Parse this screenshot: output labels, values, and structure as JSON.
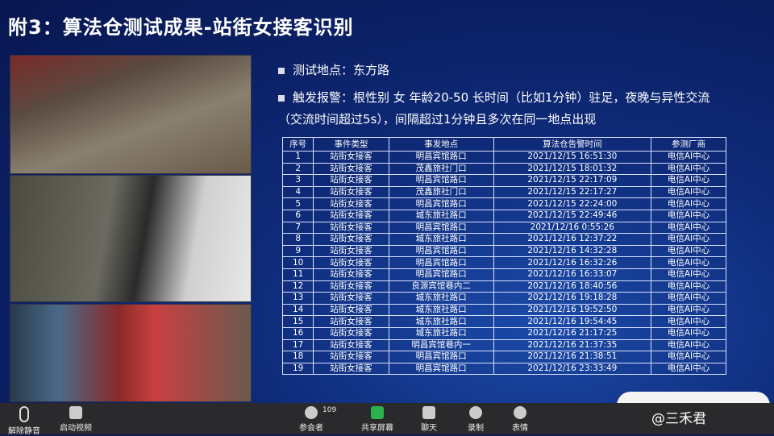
{
  "slide": {
    "title": "附3：算法仓测试成果-站街女接客识别",
    "bullets": [
      "测试地点：东方路",
      "触发报警：根性别 女  年龄20-50 长时间（比如1分钟）驻足，夜晚与异性交流（交流时间超过5s），间隔超过1分钟且多次在同一地点出现"
    ],
    "table": {
      "header": [
        "序号",
        "事件类型",
        "事发地点",
        "算法仓告警时间",
        "参测厂商"
      ],
      "rows": [
        [
          1,
          "站街女接客",
          "明昌宾馆路口",
          "2021/12/15 16:51:30",
          "电信AI中心"
        ],
        [
          2,
          "站街女接客",
          "茂鑫旅社门口",
          "2021/12/15 18:01:32",
          "电信AI中心"
        ],
        [
          3,
          "站街女接客",
          "明昌宾馆路口",
          "2021/12/15 22:17:09",
          "电信AI中心"
        ],
        [
          4,
          "站街女接客",
          "茂鑫旅社门口",
          "2021/12/15 22:17:27",
          "电信AI中心"
        ],
        [
          5,
          "站街女接客",
          "明昌宾馆路口",
          "2021/12/15 22:24:00",
          "电信AI中心"
        ],
        [
          6,
          "站街女接客",
          "城东旅社路口",
          "2021/12/15 22:49:46",
          "电信AI中心"
        ],
        [
          7,
          "站街女接客",
          "明昌宾馆路口",
          "2021/12/16 0:55:26",
          "电信AI中心"
        ],
        [
          8,
          "站街女接客",
          "城东旅社路口",
          "2021/12/16 12:37:22",
          "电信AI中心"
        ],
        [
          9,
          "站街女接客",
          "明昌宾馆路口",
          "2021/12/16 14:32:28",
          "电信AI中心"
        ],
        [
          10,
          "站街女接客",
          "明昌宾馆路口",
          "2021/12/16 16:32:26",
          "电信AI中心"
        ],
        [
          11,
          "站街女接客",
          "明昌宾馆路口",
          "2021/12/16 16:33:07",
          "电信AI中心"
        ],
        [
          12,
          "站街女接客",
          "良源宾馆巷内二",
          "2021/12/16 18:40:56",
          "电信AI中心"
        ],
        [
          13,
          "站街女接客",
          "城东旅社路口",
          "2021/12/16 19:18:28",
          "电信AI中心"
        ],
        [
          14,
          "站街女接客",
          "城东旅社路口",
          "2021/12/16 19:52:50",
          "电信AI中心"
        ],
        [
          15,
          "站街女接客",
          "城东旅社路口",
          "2021/12/16 19:54:45",
          "电信AI中心"
        ],
        [
          16,
          "站街女接客",
          "城东旅社路口",
          "2021/12/16 21:17:25",
          "电信AI中心"
        ],
        [
          17,
          "站街女接客",
          "明昌宾馆巷内一",
          "2021/12/16 21:37:35",
          "电信AI中心"
        ],
        [
          18,
          "站街女接客",
          "明昌宾馆路口",
          "2021/12/16 21:38:51",
          "电信AI中心"
        ],
        [
          19,
          "站街女接客",
          "明昌宾馆路口",
          "2021/12/16 23:33:49",
          "电信AI中心"
        ]
      ]
    }
  },
  "toolbar": {
    "unmute": "解除静音",
    "video": "启动视频",
    "participants": "参会者",
    "participant_count": 109,
    "share": "共享屏幕",
    "chat": "聊天",
    "record": "录制",
    "reactions": "表情"
  },
  "watermark": "@三禾君"
}
